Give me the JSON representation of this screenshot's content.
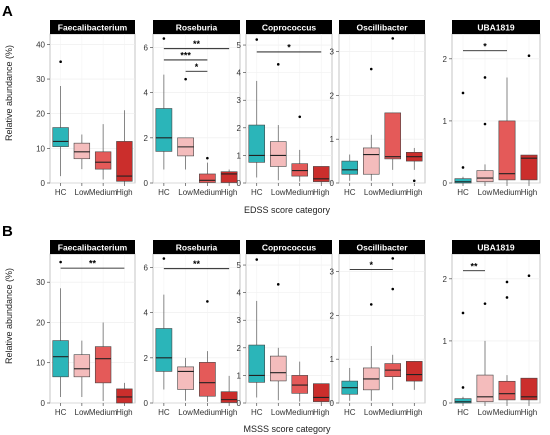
{
  "panel_labels": [
    "A",
    "B"
  ],
  "row_xlabels": [
    "EDSS score category",
    "MSSS score category"
  ],
  "ylabel": "Relative abundance (%)",
  "colors": {
    "HC": "#2BB5B9",
    "Low": "#F4BCBC",
    "Medium": "#E45A59",
    "High": "#CB2E2C",
    "title_bg": "#000000"
  },
  "chart_data": [
    {
      "type": "box",
      "title": "Faecalibacterium",
      "ylim": [
        0,
        43
      ],
      "yticks": [
        0,
        10,
        20,
        30,
        40
      ],
      "categories": [
        "HC",
        "Low",
        "Medium",
        "High"
      ],
      "boxes": [
        {
          "lw": 2,
          "q1": 10.5,
          "med": 12,
          "q3": 16,
          "hi": 28,
          "out": [
            35
          ]
        },
        {
          "lw": 4,
          "q1": 7,
          "med": 9,
          "q3": 11.5,
          "hi": 14,
          "out": []
        },
        {
          "lw": 1,
          "q1": 4,
          "med": 6,
          "q3": 9,
          "hi": 17,
          "out": []
        },
        {
          "lw": 0,
          "q1": 0.5,
          "med": 2,
          "q3": 12,
          "hi": 21,
          "out": []
        }
      ],
      "sig": [],
      "xlabel": "",
      "ylabel": "Relative abundance (%)"
    },
    {
      "type": "box",
      "title": "Roseburia",
      "ylim": [
        0,
        6.6
      ],
      "yticks": [
        0,
        2,
        4,
        6
      ],
      "categories": [
        "HC",
        "Low",
        "Medium",
        "High"
      ],
      "boxes": [
        {
          "lw": 0.6,
          "q1": 1.4,
          "med": 2.0,
          "q3": 3.3,
          "hi": 4.8,
          "out": [
            6.4
          ]
        },
        {
          "lw": 0.6,
          "q1": 1.2,
          "med": 1.6,
          "q3": 2.0,
          "hi": 2.0,
          "out": [
            4.6
          ]
        },
        {
          "lw": 0,
          "q1": 0.02,
          "med": 0.12,
          "q3": 0.4,
          "hi": 0.9,
          "out": [
            1.1
          ]
        },
        {
          "lw": 0,
          "q1": 0.02,
          "med": 0.4,
          "q3": 0.5,
          "hi": 0.6,
          "out": []
        }
      ],
      "sig": [
        {
          "from": 0,
          "to": 3,
          "y": 5.95,
          "label": "**"
        },
        {
          "from": 0,
          "to": 2,
          "y": 5.45,
          "label": "***"
        },
        {
          "from": 1,
          "to": 2,
          "y": 4.95,
          "label": "*"
        }
      ],
      "xlabel": ""
    },
    {
      "type": "box",
      "title": "Coprococcus",
      "ylim": [
        0,
        5.4
      ],
      "yticks": [
        0,
        1,
        2,
        3,
        4,
        5
      ],
      "categories": [
        "HC",
        "Low",
        "Medium",
        "High"
      ],
      "boxes": [
        {
          "lw": 0.2,
          "q1": 0.75,
          "med": 1.0,
          "q3": 2.1,
          "hi": 3.7,
          "out": [
            5.2
          ]
        },
        {
          "lw": 0.1,
          "q1": 0.6,
          "med": 1.0,
          "q3": 1.5,
          "hi": 2.1,
          "out": [
            4.3
          ]
        },
        {
          "lw": 0.05,
          "q1": 0.25,
          "med": 0.45,
          "q3": 0.7,
          "hi": 1.2,
          "out": [
            2.4
          ]
        },
        {
          "lw": 0,
          "q1": 0.05,
          "med": 0.15,
          "q3": 0.6,
          "hi": 0.6,
          "out": []
        }
      ],
      "sig": [
        {
          "from": 0,
          "to": 3,
          "y": 4.75,
          "label": "*"
        }
      ],
      "xlabel": "EDSS score category"
    },
    {
      "type": "box",
      "title": "Oscillibacter",
      "ylim": [
        0,
        3.4
      ],
      "yticks": [
        0,
        1,
        2,
        3
      ],
      "categories": [
        "HC",
        "Low",
        "Medium",
        "High"
      ],
      "boxes": [
        {
          "lw": 0.05,
          "q1": 0.2,
          "med": 0.3,
          "q3": 0.5,
          "hi": 0.65,
          "out": []
        },
        {
          "lw": 0.05,
          "q1": 0.2,
          "med": 0.65,
          "q3": 0.8,
          "hi": 1.1,
          "out": [
            2.6
          ]
        },
        {
          "lw": 0.3,
          "q1": 0.55,
          "med": 0.6,
          "q3": 1.6,
          "hi": 1.6,
          "out": [
            3.3
          ]
        },
        {
          "lw": 0.3,
          "q1": 0.5,
          "med": 0.6,
          "q3": 0.7,
          "hi": 0.8,
          "out": [
            0.05
          ]
        }
      ],
      "sig": [],
      "xlabel": ""
    },
    {
      "type": "box",
      "title": "UBA1819",
      "ylim": [
        0,
        2.4
      ],
      "yticks": [
        0,
        1,
        2
      ],
      "categories": [
        "HC",
        "Low",
        "Medium",
        "High"
      ],
      "boxes": [
        {
          "lw": 0,
          "q1": 0,
          "med": 0.02,
          "q3": 0.07,
          "hi": 0.1,
          "out": [
            1.45,
            0.25
          ]
        },
        {
          "lw": 0,
          "q1": 0.02,
          "med": 0.08,
          "q3": 0.2,
          "hi": 0.3,
          "out": [
            1.7,
            0.95
          ]
        },
        {
          "lw": 0,
          "q1": 0.05,
          "med": 0.15,
          "q3": 1.0,
          "hi": 1.7,
          "out": []
        },
        {
          "lw": 0,
          "q1": 0.05,
          "med": 0.4,
          "q3": 0.45,
          "hi": 0.45,
          "out": [
            2.05
          ]
        }
      ],
      "sig": [
        {
          "from": 0,
          "to": 2,
          "y": 2.13,
          "label": "*"
        }
      ],
      "xlabel": ""
    },
    {
      "type": "box",
      "title": "Faecalibacterium",
      "ylim": [
        0,
        37
      ],
      "yticks": [
        0,
        10,
        20,
        30
      ],
      "categories": [
        "HC",
        "Low",
        "Medium",
        "High"
      ],
      "boxes": [
        {
          "lw": 1.5,
          "q1": 6.5,
          "med": 11.5,
          "q3": 15.5,
          "hi": 28.5,
          "out": [
            35
          ]
        },
        {
          "lw": 1.5,
          "q1": 6.5,
          "med": 8.5,
          "q3": 12,
          "hi": 15.5,
          "out": []
        },
        {
          "lw": 0.5,
          "q1": 5,
          "med": 11,
          "q3": 14,
          "hi": 20,
          "out": []
        },
        {
          "lw": 0,
          "q1": 0,
          "med": 1.5,
          "q3": 3.5,
          "hi": 5,
          "out": []
        }
      ],
      "sig": [
        {
          "from": 0,
          "to": 3,
          "y": 33.5,
          "label": "**"
        }
      ],
      "xlabel": "",
      "ylabel": "Relative abundance (%)"
    },
    {
      "type": "box",
      "title": "Roseburia",
      "ylim": [
        0,
        6.6
      ],
      "yticks": [
        0,
        2,
        4,
        6
      ],
      "categories": [
        "HC",
        "Low",
        "Medium",
        "High"
      ],
      "boxes": [
        {
          "lw": 0.6,
          "q1": 1.4,
          "med": 2.0,
          "q3": 3.3,
          "hi": 4.8,
          "out": [
            6.4
          ]
        },
        {
          "lw": 0.1,
          "q1": 0.6,
          "med": 1.4,
          "q3": 1.6,
          "hi": 2.0,
          "out": []
        },
        {
          "lw": 0.05,
          "q1": 0.3,
          "med": 0.9,
          "q3": 1.8,
          "hi": 2.3,
          "out": [
            4.5
          ]
        },
        {
          "lw": 0,
          "q1": 0.02,
          "med": 0.15,
          "q3": 0.5,
          "hi": 1.2,
          "out": []
        }
      ],
      "sig": [
        {
          "from": 0,
          "to": 3,
          "y": 5.95,
          "label": "**"
        }
      ],
      "xlabel": ""
    },
    {
      "type": "box",
      "title": "Coprococcus",
      "ylim": [
        0,
        5.4
      ],
      "yticks": [
        0,
        1,
        2,
        3,
        4,
        5
      ],
      "categories": [
        "HC",
        "Low",
        "Medium",
        "High"
      ],
      "boxes": [
        {
          "lw": 0.2,
          "q1": 0.75,
          "med": 1.0,
          "q3": 2.1,
          "hi": 3.7,
          "out": [
            5.2
          ]
        },
        {
          "lw": 0.1,
          "q1": 0.8,
          "med": 1.1,
          "q3": 1.7,
          "hi": 2.0,
          "out": [
            4.3
          ]
        },
        {
          "lw": 0.05,
          "q1": 0.35,
          "med": 0.65,
          "q3": 1.0,
          "hi": 1.5,
          "out": []
        },
        {
          "lw": 0,
          "q1": 0.05,
          "med": 0.2,
          "q3": 0.7,
          "hi": 0.7,
          "out": []
        }
      ],
      "sig": [],
      "xlabel": "MSSS score category"
    },
    {
      "type": "box",
      "title": "Oscillibacter",
      "ylim": [
        0,
        3.4
      ],
      "yticks": [
        0,
        1,
        2,
        3
      ],
      "categories": [
        "HC",
        "Low",
        "Medium",
        "High"
      ],
      "boxes": [
        {
          "lw": 0.05,
          "q1": 0.2,
          "med": 0.35,
          "q3": 0.5,
          "hi": 0.8,
          "out": []
        },
        {
          "lw": 0.05,
          "q1": 0.3,
          "med": 0.55,
          "q3": 0.8,
          "hi": 1.3,
          "out": [
            2.25
          ]
        },
        {
          "lw": 0.3,
          "q1": 0.6,
          "med": 0.75,
          "q3": 0.9,
          "hi": 1.1,
          "out": [
            3.3,
            2.6
          ]
        },
        {
          "lw": 0.3,
          "q1": 0.5,
          "med": 0.65,
          "q3": 0.95,
          "hi": 0.95,
          "out": []
        }
      ],
      "sig": [
        {
          "from": 0,
          "to": 2,
          "y": 3.05,
          "label": "*"
        }
      ],
      "xlabel": ""
    },
    {
      "type": "box",
      "title": "UBA1819",
      "ylim": [
        0,
        2.4
      ],
      "yticks": [
        0,
        1,
        2
      ],
      "categories": [
        "HC",
        "Low",
        "Medium",
        "High"
      ],
      "boxes": [
        {
          "lw": 0,
          "q1": 0,
          "med": 0.02,
          "q3": 0.07,
          "hi": 0.1,
          "out": [
            1.45,
            0.25
          ]
        },
        {
          "lw": 0,
          "q1": 0.02,
          "med": 0.1,
          "q3": 0.45,
          "hi": 1.0,
          "out": [
            1.6
          ]
        },
        {
          "lw": 0,
          "q1": 0.05,
          "med": 0.15,
          "q3": 0.35,
          "hi": 0.45,
          "out": [
            1.95,
            1.7
          ]
        },
        {
          "lw": 0,
          "q1": 0.05,
          "med": 0.1,
          "q3": 0.4,
          "hi": 0.4,
          "out": [
            2.05
          ]
        }
      ],
      "sig": [
        {
          "from": 0,
          "to": 1,
          "y": 2.13,
          "label": "**"
        }
      ],
      "xlabel": ""
    }
  ]
}
